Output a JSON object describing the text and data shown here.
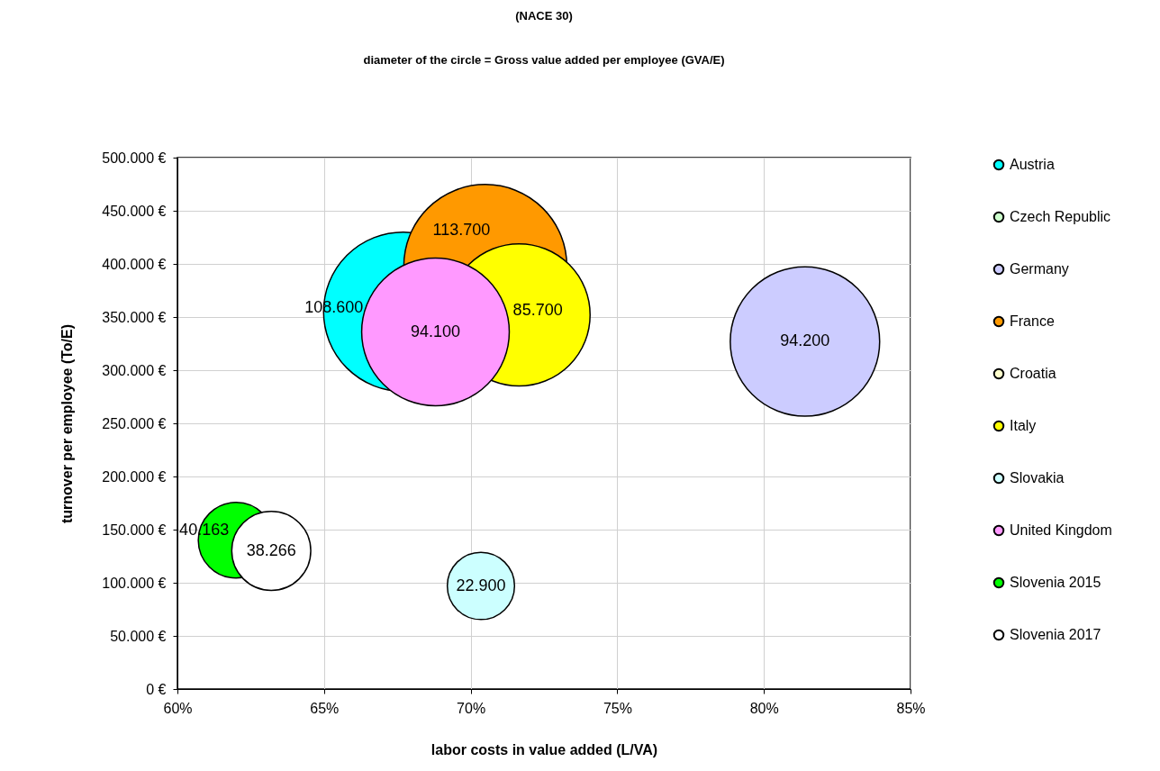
{
  "chart_data": {
    "type": "bubble",
    "title": "(NACE 30)",
    "subtitle": "diameter of the circle = Gross value added per employee  (GVA/E)",
    "xlabel": "labor costs in value added (L/VA)",
    "ylabel": "turnover per employee (To/E)",
    "xlim": [
      60,
      85
    ],
    "xticks": [
      {
        "value": 60,
        "label": "60%"
      },
      {
        "value": 65,
        "label": "65%"
      },
      {
        "value": 70,
        "label": "70%"
      },
      {
        "value": 75,
        "label": "75%"
      },
      {
        "value": 80,
        "label": "80%"
      },
      {
        "value": 85,
        "label": "85%"
      }
    ],
    "ylim": [
      0,
      500000
    ],
    "yticks": [
      {
        "value": 0,
        "label": "0 €"
      },
      {
        "value": 50000,
        "label": "50.000 €"
      },
      {
        "value": 100000,
        "label": "100.000 €"
      },
      {
        "value": 150000,
        "label": "150.000 €"
      },
      {
        "value": 200000,
        "label": "200.000 €"
      },
      {
        "value": 250000,
        "label": "250.000 €"
      },
      {
        "value": 300000,
        "label": "300.000 €"
      },
      {
        "value": 350000,
        "label": "350.000 €"
      },
      {
        "value": 400000,
        "label": "400.000 €"
      },
      {
        "value": 450000,
        "label": "450.000 €"
      },
      {
        "value": 500000,
        "label": "500.000 €"
      }
    ],
    "grid": true,
    "legend": "right",
    "marker": "circle",
    "series": [
      {
        "name": "Austria",
        "color": "#00ffff",
        "x": [
          67.7
        ],
        "values": [
          355000
        ],
        "sizes": [
          0.955
        ]
      },
      {
        "name": "Czech Republic",
        "color": "#ccffcc"
      },
      {
        "name": "Germany",
        "color": "#ccccff",
        "x": [
          81.4
        ],
        "values": [
          327000
        ],
        "sizes": [
          0.84
        ]
      },
      {
        "name": "France",
        "color": "#ff9900",
        "x": [
          70.5
        ],
        "values": [
          398000
        ],
        "sizes": [
          1
        ]
      },
      {
        "name": "Croatia",
        "color": "#ffffcc"
      },
      {
        "name": "Italy",
        "color": "#ffff00",
        "x": [
          71.65
        ],
        "values": [
          352000
        ],
        "sizes": [
          0.76
        ]
      },
      {
        "name": "Slovakia",
        "color": "#ccffff",
        "x": [
          70.35
        ],
        "values": [
          97000
        ],
        "sizes": [
          0.17
        ]
      },
      {
        "name": "United Kingdom",
        "color": "#ff99ff",
        "x": [
          68.8
        ],
        "values": [
          336000
        ],
        "sizes": [
          0.82
        ]
      },
      {
        "name": "Slovenia 2015",
        "color": "#00ff00",
        "x": [
          62.0
        ],
        "values": [
          140000
        ],
        "sizes": [
          0.215
        ]
      },
      {
        "name": "Slovenia 2017",
        "color": "#ffffff",
        "x": [
          63.2
        ],
        "values": [
          130000
        ],
        "sizes": [
          0.235
        ]
      }
    ],
    "annotations": [
      {
        "text": "108.600",
        "x": 67.7,
        "y": 355000
      },
      {
        "text": "94.200",
        "x": 81.4,
        "y": 327000
      },
      {
        "text": "113.700",
        "x": 70.5,
        "y": 398000
      },
      {
        "text": "85.700",
        "x": 71.65,
        "y": 352000
      },
      {
        "text": "22.900",
        "x": 70.35,
        "y": 97000
      },
      {
        "text": "94.100",
        "x": 68.8,
        "y": 336000
      },
      {
        "text": "40.163",
        "x": 62.0,
        "y": 140000
      },
      {
        "text": "38.266",
        "x": 63.2,
        "y": 130000
      }
    ]
  }
}
